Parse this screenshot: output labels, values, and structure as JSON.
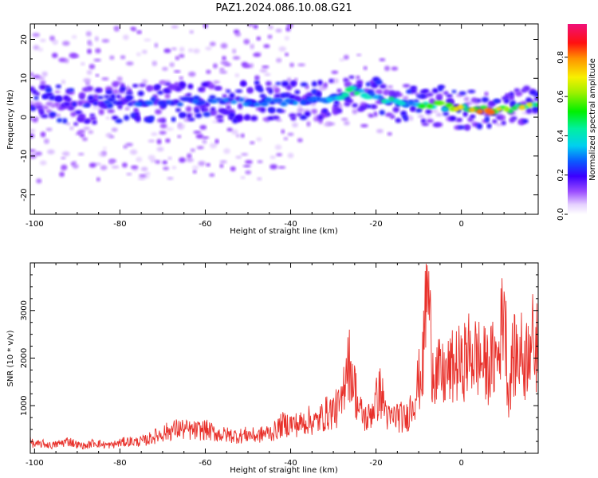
{
  "title": "PAZ1.2024.086.10.08.G21",
  "chart_data": [
    {
      "type": "heatmap",
      "xlabel": "Height of straight line (km)",
      "ylabel": "Frequency (Hz)",
      "xlim": [
        -101,
        18
      ],
      "ylim": [
        -25,
        24
      ],
      "xticks": [
        -100,
        -80,
        -60,
        -40,
        -20,
        0
      ],
      "xtick_labels": [
        "-100",
        "-80",
        "-60",
        "-40",
        "-20",
        "0"
      ],
      "yticks": [
        -20,
        -10,
        0,
        10,
        20
      ],
      "ytick_labels": [
        "-20",
        "-10",
        "0",
        "10",
        "20"
      ],
      "colorbar": {
        "label": "Normalized spectral amplitude",
        "range": [
          0,
          0.97
        ],
        "ticks": [
          0.0,
          0.2,
          0.4,
          0.6,
          0.8
        ],
        "tick_labels": [
          "0.0",
          "0.2",
          "0.4",
          "0.6",
          "0.8"
        ],
        "colormap": "rainbow (white → violet → blue → cyan → green → yellow → orange → red → magenta)"
      },
      "ridge": {
        "description": "dominant spectral ridge (frequency in Hz vs height in km)",
        "x": [
          -100,
          -90,
          -80,
          -70,
          -60,
          -50,
          -40,
          -35,
          -30,
          -25,
          -20,
          -15,
          -10,
          -5,
          0,
          5,
          10,
          15,
          18
        ],
        "freq": [
          3,
          3,
          4,
          4,
          4,
          4,
          4,
          4,
          5,
          7,
          5,
          4,
          3,
          3,
          2,
          2,
          2,
          3,
          3
        ],
        "peak_amplitude": [
          0.1,
          0.15,
          0.3,
          0.25,
          0.3,
          0.3,
          0.3,
          0.35,
          0.45,
          0.5,
          0.45,
          0.45,
          0.55,
          0.6,
          0.75,
          0.85,
          0.85,
          0.7,
          0.6
        ]
      },
      "grid": false
    },
    {
      "type": "line",
      "xlabel": "Height of straight line (km)",
      "ylabel": "SNR (10 * v/v)",
      "xlim": [
        -101,
        18
      ],
      "ylim": [
        0,
        4000
      ],
      "xticks": [
        -100,
        -80,
        -60,
        -40,
        -20,
        0
      ],
      "xtick_labels": [
        "-100",
        "-80",
        "-60",
        "-40",
        "-20",
        "0"
      ],
      "yticks": [
        1000,
        2000,
        3000
      ],
      "ytick_labels": [
        "1000",
        "2000",
        "3000"
      ],
      "color": "#e8302a",
      "grid": false,
      "series": [
        {
          "x": [
            -101,
            -100,
            -98,
            -96,
            -94,
            -92,
            -90,
            -88,
            -86,
            -84,
            -82,
            -80,
            -78,
            -76,
            -74,
            -72,
            -70,
            -68,
            -66,
            -64,
            -62,
            -60,
            -58,
            -56,
            -54,
            -52,
            -50,
            -48,
            -46,
            -44,
            -42,
            -40,
            -38,
            -36,
            -34,
            -32,
            -30,
            -28,
            -27,
            -26,
            -24,
            -22,
            -20,
            -19,
            -17,
            -15,
            -13,
            -11,
            -9,
            -8,
            -7,
            -6,
            -4,
            -2,
            0,
            2,
            4,
            6,
            8,
            9,
            10,
            11,
            12,
            14,
            15,
            16,
            17,
            18
          ],
          "values": [
            250,
            180,
            200,
            160,
            210,
            260,
            180,
            150,
            230,
            180,
            170,
            220,
            250,
            240,
            270,
            350,
            420,
            480,
            520,
            480,
            470,
            500,
            430,
            390,
            380,
            360,
            400,
            360,
            420,
            450,
            600,
            620,
            600,
            700,
            650,
            820,
            900,
            1000,
            2000,
            1900,
            900,
            700,
            1100,
            1300,
            700,
            800,
            700,
            1200,
            1800,
            3950,
            2000,
            1700,
            1600,
            1800,
            1900,
            2100,
            2000,
            1800,
            2000,
            2100,
            3400,
            1200,
            2000,
            2100,
            1900,
            2500,
            2300,
            2200
          ]
        }
      ]
    }
  ]
}
